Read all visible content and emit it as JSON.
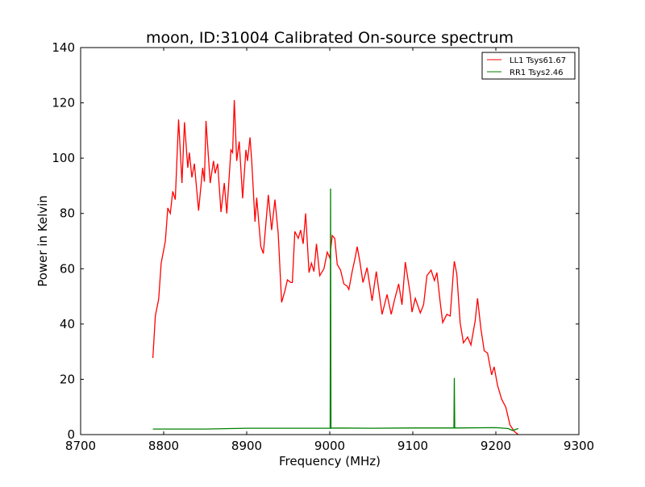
{
  "chart_data": {
    "type": "line",
    "title": "moon, ID:31004 Calibrated On-source spectrum",
    "xlabel": "Frequency (MHz)",
    "ylabel": "Power in Kelvin",
    "xlim": [
      8700,
      9300
    ],
    "ylim": [
      0,
      140
    ],
    "xticks": [
      8700,
      8800,
      8900,
      9000,
      9100,
      9200,
      9300
    ],
    "yticks": [
      0,
      20,
      40,
      60,
      80,
      100,
      120,
      140
    ],
    "grid": false,
    "legend_position": "top-right",
    "series": [
      {
        "name": "LL1 Tsys61.67",
        "color": "#ff0000",
        "x": [
          8787,
          8790,
          8794,
          8797,
          8802,
          8805,
          8808,
          8811,
          8814,
          8818,
          8822,
          8825,
          8829,
          8831,
          8834,
          8837,
          8842,
          8847,
          8849,
          8851,
          8856,
          8860,
          8862,
          8865,
          8869,
          8873,
          8876,
          8881,
          8883,
          8885,
          8888,
          8891,
          8893,
          8895,
          8899,
          8901,
          8904,
          8906,
          8910,
          8912,
          8917,
          8920,
          8926,
          8930,
          8934,
          8938,
          8942,
          8946,
          8949,
          8953,
          8955,
          8958,
          8962,
          8965,
          8968,
          8971,
          8975,
          8978,
          8981,
          8984,
          8988,
          8993,
          8997,
          9000,
          9003,
          9006,
          9009,
          9013,
          9017,
          9021,
          9023,
          9027,
          9031,
          9033,
          9036,
          9040,
          9045,
          9048,
          9051,
          9056,
          9063,
          9069,
          9074,
          9078,
          9083,
          9087,
          9091,
          9097,
          9099,
          9103,
          9109,
          9113,
          9117,
          9122,
          9126,
          9129,
          9133,
          9136,
          9141,
          9145,
          9149,
          9150,
          9153,
          9157,
          9161,
          9166,
          9170,
          9175,
          9178,
          9182,
          9186,
          9190,
          9195,
          9198,
          9202,
          9207,
          9212,
          9217,
          9222,
          9227
        ],
        "y": [
          27.7,
          43,
          49,
          62,
          70,
          82,
          80,
          88,
          85,
          114,
          91,
          113,
          96.5,
          102,
          93,
          98,
          81,
          96.5,
          91.5,
          113.5,
          91,
          99,
          94.5,
          98,
          80.5,
          91,
          80,
          103,
          102,
          121,
          99,
          106,
          96,
          85.5,
          103,
          99,
          107.5,
          99,
          77,
          85.7,
          68,
          65.5,
          86.7,
          74,
          85,
          72.6,
          47.8,
          52,
          56,
          55,
          55,
          73.5,
          71,
          74,
          69,
          80,
          58.6,
          62,
          59,
          69,
          57.5,
          60,
          66,
          64,
          72,
          71,
          61.5,
          59.5,
          54.5,
          53.7,
          52.5,
          59,
          64.5,
          68,
          63,
          55,
          60.4,
          54.5,
          48.4,
          59,
          43.5,
          50.7,
          43.5,
          48.7,
          54.5,
          47,
          62.4,
          50.7,
          44.3,
          49.3,
          44,
          47,
          57.5,
          59.5,
          55.7,
          58.6,
          47.8,
          40.5,
          43.5,
          42.9,
          59.5,
          62.7,
          58,
          40.5,
          33.2,
          35.3,
          32.4,
          41,
          49.3,
          38.2,
          30.3,
          29.5,
          21.6,
          24.5,
          17.8,
          12.8,
          9.9,
          3.5,
          1.2,
          0
        ]
      },
      {
        "name": "RR1 Tsys2.46",
        "color": "#008000",
        "x": [
          8787,
          8850,
          8900,
          8950,
          9000,
          9000.5,
          9001,
          9001.5,
          9002,
          9050,
          9100,
          9149,
          9149.5,
          9150,
          9150.5,
          9151,
          9200,
          9215,
          9220,
          9227
        ],
        "y": [
          2.0,
          2.0,
          2.3,
          2.3,
          2.3,
          2.3,
          89,
          2.3,
          2.4,
          2.3,
          2.4,
          2.4,
          2.4,
          20.5,
          2.4,
          2.4,
          2.5,
          2.2,
          1.5,
          2.2
        ]
      }
    ]
  }
}
